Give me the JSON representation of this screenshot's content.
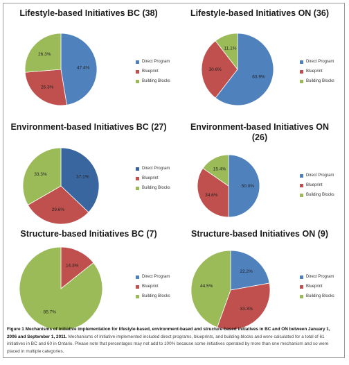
{
  "colors": {
    "direct_program": "#4f81bd",
    "direct_program_dark": "#3a66a0",
    "blueprint": "#c0504d",
    "building_blocks": "#9bbb59"
  },
  "legend_labels": [
    "Direct Program",
    "Blueprint",
    "Building Blocks"
  ],
  "chart_data": [
    {
      "type": "pie",
      "title": "Lifestyle-based Initiatives BC (38)",
      "labels": [
        "Direct Program",
        "Blueprint",
        "Building Blocks"
      ],
      "values": [
        47.4,
        26.3,
        26.3
      ],
      "value_labels": [
        "47.4%",
        "26.3%",
        "26.3%"
      ],
      "legend_placement": "right"
    },
    {
      "type": "pie",
      "title": "Lifestyle-based Initiatives ON (36)",
      "labels": [
        "Direct Program",
        "Blueprint",
        "Building Blocks"
      ],
      "values": [
        63.9,
        30.6,
        11.1
      ],
      "value_labels": [
        "63.9%",
        "30.6%",
        "11.1%"
      ],
      "legend_placement": "right"
    },
    {
      "type": "pie",
      "title": "Environment-based Initiatives BC (27)",
      "labels": [
        "Direct Program",
        "Blueprint",
        "Building Blocks"
      ],
      "values": [
        37.1,
        29.6,
        33.3
      ],
      "value_labels": [
        "37.1%",
        "29.6%",
        "33.3%"
      ],
      "legend_placement": "right"
    },
    {
      "type": "pie",
      "title": "Environment-based Initiatives ON\n(26)",
      "labels": [
        "Direct Program",
        "Blueprint",
        "Building Blocks"
      ],
      "values": [
        50.0,
        34.6,
        15.4
      ],
      "value_labels": [
        "50.0%",
        "34.6%",
        "15.4%"
      ],
      "legend_placement": "right"
    },
    {
      "type": "pie",
      "title": "Structure-based Initiatives BC (7)",
      "labels": [
        "Direct Program",
        "Blueprint",
        "Building Blocks"
      ],
      "values": [
        0,
        14.3,
        85.7
      ],
      "value_labels": [
        "",
        "14.3%",
        "85.7%"
      ],
      "legend_placement": "right"
    },
    {
      "type": "pie",
      "title": "Structure-based Initiatives ON (9)",
      "labels": [
        "Direct Program",
        "Blueprint",
        "Building Blocks"
      ],
      "values": [
        22.2,
        33.3,
        44.5
      ],
      "value_labels": [
        "22.2%",
        "33.3%",
        "44.5%"
      ],
      "legend_placement": "right"
    }
  ],
  "caption": {
    "lead": "Figure 1 Mechanisms of initiative implementation for lifestyle-based, environment-based and structure-based initiatives in BC and ON between January 1, 2006 and September 1, 2011.",
    "body": " Mechanisms of initiative implemented included direct programs, blueprints, and building blocks and were calculated for a total of 61 initiatives in BC and 60 in Ontario. Please note that percentages may not add to 100% because some initiatives operated by more than one mechanism and so were placed in multiple categories."
  }
}
